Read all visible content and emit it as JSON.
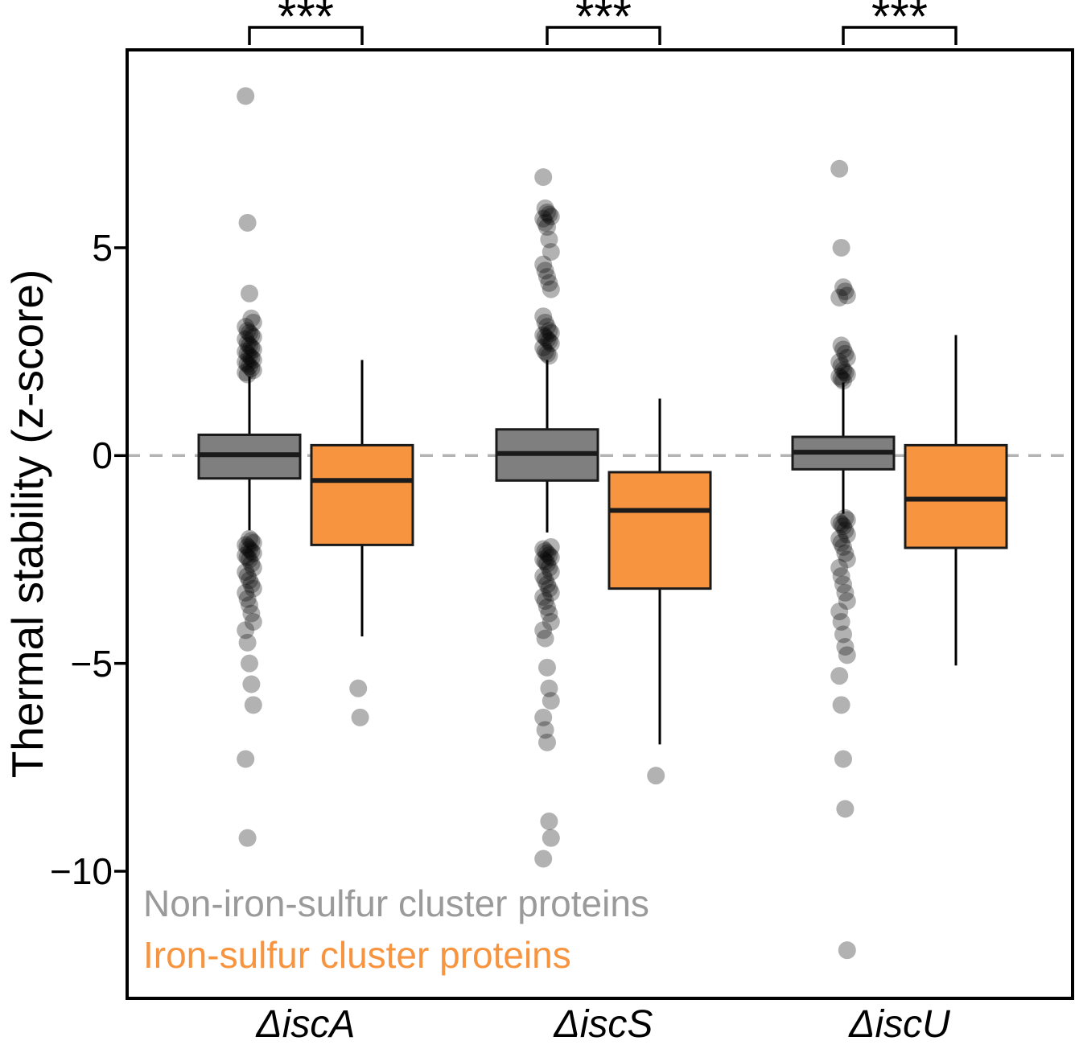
{
  "chart_data": {
    "type": "boxplot",
    "title": "",
    "ylabel": "Thermal stability (z-score)",
    "xlabel": "",
    "ylim": [
      -13.1,
      9.8
    ],
    "grid": false,
    "zero_reference_line": 0,
    "legend_position": "inside-bottom-left",
    "axis": {
      "ylabel": "Thermal stability (z-score)",
      "yticks": [
        {
          "label": "5",
          "value": 5
        },
        {
          "label": "0",
          "value": 0
        },
        {
          "label": "−5",
          "value": -5
        },
        {
          "label": "−10",
          "value": -10
        }
      ]
    },
    "legend": [
      {
        "label": "Non-iron-sulfur cluster proteins",
        "color": "#9a9a9a"
      },
      {
        "label": "Iron-sulfur cluster proteins",
        "color": "#f79440"
      }
    ],
    "colors": {
      "non_iron_box": "#7f7f7f",
      "iron_box": "#f79440",
      "outlier": "#000000",
      "outlier_opacity": 0.3,
      "zero_line": "#b3b3b3"
    },
    "groups": [
      {
        "label": "ΔiscA",
        "significance": "***",
        "boxes": [
          {
            "series": "Non-iron-sulfur cluster proteins",
            "color": "#7f7f7f",
            "whisker_low": -1.8,
            "q1": -0.55,
            "median": 0.02,
            "q3": 0.5,
            "whisker_high": 1.9,
            "outliers": [
              8.65,
              5.6,
              3.9,
              3.3,
              3.2,
              3.1,
              3.0,
              2.95,
              2.9,
              2.85,
              2.8,
              2.7,
              2.65,
              2.6,
              2.55,
              2.5,
              2.45,
              2.4,
              2.35,
              2.3,
              2.25,
              2.2,
              2.15,
              2.1,
              2.05,
              2.0,
              1.95,
              -2.0,
              -2.05,
              -2.1,
              -2.15,
              -2.2,
              -2.25,
              -2.3,
              -2.35,
              -2.4,
              -2.45,
              -2.5,
              -2.6,
              -2.7,
              -2.8,
              -2.9,
              -3.0,
              -3.1,
              -3.2,
              -3.3,
              -3.45,
              -3.6,
              -3.8,
              -4.0,
              -4.2,
              -4.5,
              -5.0,
              -5.5,
              -6.0,
              -7.3,
              -9.2
            ]
          },
          {
            "series": "Iron-sulfur cluster proteins",
            "color": "#f79440",
            "whisker_low": -4.35,
            "q1": -2.15,
            "median": -0.6,
            "q3": 0.25,
            "whisker_high": 2.3,
            "outliers": [
              -5.6,
              -6.3
            ]
          }
        ]
      },
      {
        "label": "ΔiscS",
        "significance": "***",
        "boxes": [
          {
            "series": "Non-iron-sulfur cluster proteins",
            "color": "#7f7f7f",
            "whisker_low": -1.85,
            "q1": -0.6,
            "median": 0.05,
            "q3": 0.63,
            "whisker_high": 2.3,
            "outliers": [
              6.7,
              5.95,
              5.85,
              5.8,
              5.75,
              5.7,
              5.6,
              5.5,
              5.2,
              4.9,
              4.6,
              4.45,
              4.3,
              4.15,
              4.0,
              3.35,
              3.2,
              3.1,
              3.0,
              2.95,
              2.9,
              2.85,
              2.8,
              2.75,
              2.7,
              2.6,
              2.5,
              2.45,
              2.4,
              -2.2,
              -2.25,
              -2.3,
              -2.35,
              -2.4,
              -2.45,
              -2.5,
              -2.55,
              -2.6,
              -2.7,
              -2.8,
              -2.9,
              -3.0,
              -3.1,
              -3.2,
              -3.3,
              -3.4,
              -3.5,
              -3.65,
              -3.8,
              -4.0,
              -4.2,
              -4.4,
              -5.1,
              -5.6,
              -5.9,
              -6.3,
              -6.6,
              -6.9,
              -8.8,
              -9.2,
              -9.7
            ]
          },
          {
            "series": "Iron-sulfur cluster proteins",
            "color": "#f79440",
            "whisker_low": -6.95,
            "q1": -3.2,
            "median": -1.32,
            "q3": -0.4,
            "whisker_high": 1.37,
            "outliers": [
              -7.7
            ]
          }
        ]
      },
      {
        "label": "ΔiscU",
        "significance": "***",
        "boxes": [
          {
            "series": "Non-iron-sulfur cluster proteins",
            "color": "#7f7f7f",
            "whisker_low": -1.4,
            "q1": -0.33,
            "median": 0.08,
            "q3": 0.45,
            "whisker_high": 1.76,
            "outliers": [
              6.9,
              5.0,
              4.05,
              3.95,
              3.85,
              3.8,
              2.65,
              2.55,
              2.45,
              2.35,
              2.25,
              2.15,
              2.05,
              2.0,
              1.95,
              1.9,
              1.85,
              1.8,
              -1.5,
              -1.55,
              -1.6,
              -1.65,
              -1.7,
              -1.8,
              -1.9,
              -2.0,
              -2.1,
              -2.2,
              -2.35,
              -2.5,
              -2.7,
              -2.9,
              -3.1,
              -3.3,
              -3.5,
              -3.75,
              -4.0,
              -4.3,
              -4.6,
              -4.8,
              -5.3,
              -6.0,
              -7.3,
              -8.5,
              -11.9
            ]
          },
          {
            "series": "Iron-sulfur cluster proteins",
            "color": "#f79440",
            "whisker_low": -5.05,
            "q1": -2.22,
            "median": -1.05,
            "q3": 0.25,
            "whisker_high": 2.9,
            "outliers": []
          }
        ]
      }
    ]
  }
}
